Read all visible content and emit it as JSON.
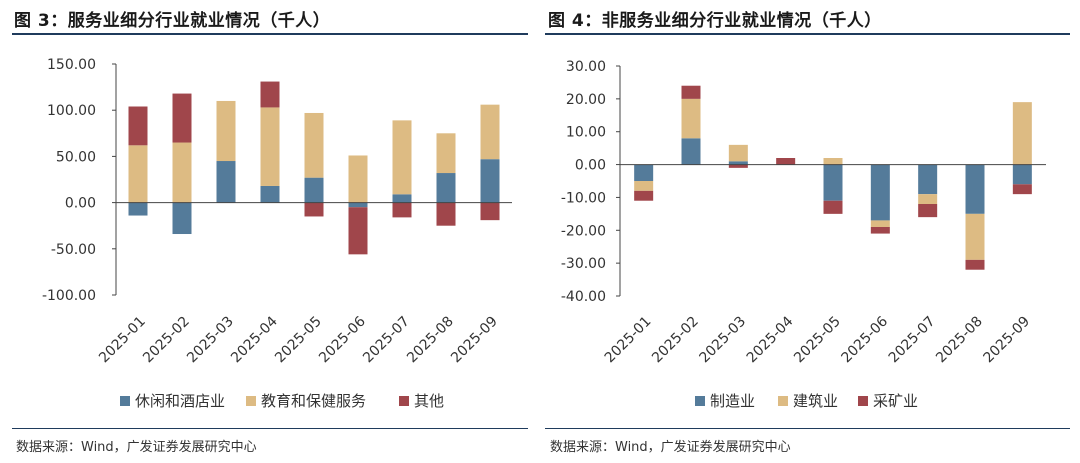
{
  "figures": [
    {
      "title": "图 3：服务业细分行业就业情况（千人）",
      "source": "数据来源：Wind，广发证券发展研究中心"
    },
    {
      "title": "图 4：非服务业细分行业就业情况（千人）",
      "source": "数据来源：Wind，广发证券发展研究中心"
    }
  ],
  "colors": {
    "blue": "#547B9A",
    "tan": "#DDBB83",
    "red": "#A0464B"
  },
  "chart_data": [
    {
      "type": "bar",
      "stacked": true,
      "title": "图 3：服务业细分行业就业情况（千人）",
      "categories": [
        "2025-01",
        "2025-02",
        "2025-03",
        "2025-04",
        "2025-05",
        "2025-06",
        "2025-07",
        "2025-08",
        "2025-09"
      ],
      "series": [
        {
          "name": "休闲和酒店业",
          "color": "#547B9A",
          "values": [
            -14,
            -34,
            45,
            18,
            27,
            -5,
            9,
            32,
            47
          ]
        },
        {
          "name": "教育和保健服务",
          "color": "#DDBB83",
          "values": [
            62,
            65,
            65,
            85,
            70,
            51,
            80,
            43,
            59
          ]
        },
        {
          "name": "其他",
          "color": "#A0464B",
          "values": [
            42,
            53,
            0,
            28,
            -15,
            -51,
            -16,
            -25,
            -19
          ]
        }
      ],
      "ylim": [
        -100,
        150
      ],
      "yticks": [
        "150.00",
        "100.00",
        "50.00",
        "0.00",
        "-50.00",
        "-100.00"
      ],
      "yticks_values": [
        150,
        100,
        50,
        0,
        -50,
        -100
      ],
      "legend": "bottom"
    },
    {
      "type": "bar",
      "stacked": true,
      "title": "图 4：非服务业细分行业就业情况（千人）",
      "categories": [
        "2025-01",
        "2025-02",
        "2025-03",
        "2025-04",
        "2025-05",
        "2025-06",
        "2025-07",
        "2025-08",
        "2025-09"
      ],
      "series": [
        {
          "name": "制造业",
          "color": "#547B9A",
          "values": [
            -5,
            8,
            1,
            0,
            -11,
            -17,
            -9,
            -15,
            -6
          ]
        },
        {
          "name": "建筑业",
          "color": "#DDBB83",
          "values": [
            -3,
            12,
            5,
            0,
            2,
            -2,
            -3,
            -14,
            19
          ]
        },
        {
          "name": "采矿业",
          "color": "#A0464B",
          "values": [
            -3,
            4,
            -1,
            2,
            -4,
            -2,
            -4,
            -3,
            -3
          ]
        }
      ],
      "ylim": [
        -40,
        30
      ],
      "yticks": [
        "30.00",
        "20.00",
        "10.00",
        "0.00",
        "-10.00",
        "-20.00",
        "-30.00",
        "-40.00"
      ],
      "yticks_values": [
        30,
        20,
        10,
        0,
        -10,
        -20,
        -30,
        -40
      ],
      "legend": "bottom"
    }
  ]
}
